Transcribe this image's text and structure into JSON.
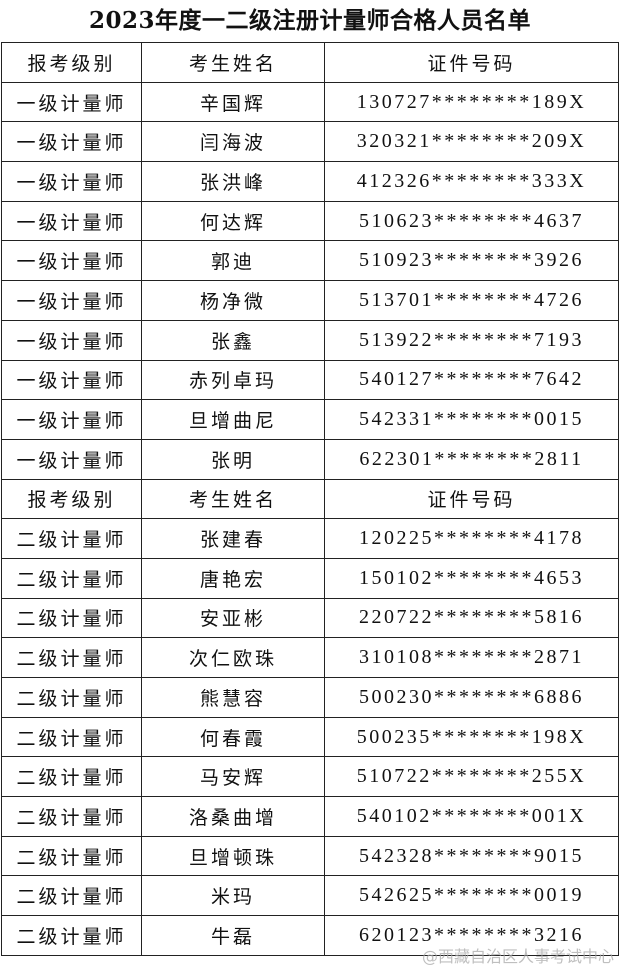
{
  "title": "2023年度一二级注册计量师合格人员名单",
  "sections": [
    {
      "header": [
        "报考级别",
        "考生姓名",
        "证件号码"
      ],
      "rows": [
        [
          "一级计量师",
          "辛国辉",
          "130727********189X"
        ],
        [
          "一级计量师",
          "闫海波",
          "320321********209X"
        ],
        [
          "一级计量师",
          "张洪峰",
          "412326********333X"
        ],
        [
          "一级计量师",
          "何达辉",
          "510623********4637"
        ],
        [
          "一级计量师",
          "郭迪",
          "510923********3926"
        ],
        [
          "一级计量师",
          "杨净微",
          "513701********4726"
        ],
        [
          "一级计量师",
          "张鑫",
          "513922********7193"
        ],
        [
          "一级计量师",
          "赤列卓玛",
          "540127********7642"
        ],
        [
          "一级计量师",
          "旦增曲尼",
          "542331********0015"
        ],
        [
          "一级计量师",
          "张明",
          "622301********2811"
        ]
      ]
    },
    {
      "header": [
        "报考级别",
        "考生姓名",
        "证件号码"
      ],
      "rows": [
        [
          "二级计量师",
          "张建春",
          "120225********4178"
        ],
        [
          "二级计量师",
          "唐艳宏",
          "150102********4653"
        ],
        [
          "二级计量师",
          "安亚彬",
          "220722********5816"
        ],
        [
          "二级计量师",
          "次仁欧珠",
          "310108********2871"
        ],
        [
          "二级计量师",
          "熊慧容",
          "500230********6886"
        ],
        [
          "二级计量师",
          "何春霞",
          "500235********198X"
        ],
        [
          "二级计量师",
          "马安辉",
          "510722********255X"
        ],
        [
          "二级计量师",
          "洛桑曲增",
          "540102********001X"
        ],
        [
          "二级计量师",
          "旦增顿珠",
          "542328********9015"
        ],
        [
          "二级计量师",
          "米玛",
          "542625********0019"
        ],
        [
          "二级计量师",
          "牛磊",
          "620123********3216"
        ]
      ]
    }
  ],
  "watermark": "@西藏自治区人事考试中心"
}
